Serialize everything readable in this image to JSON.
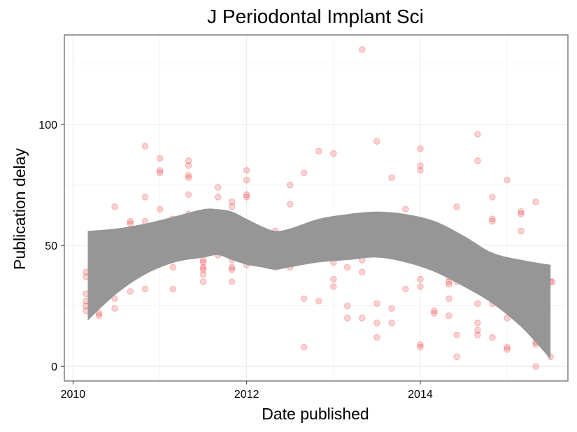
{
  "chart_data": {
    "type": "scatter",
    "title": "J Periodontal Implant Sci",
    "xlabel": "Date published",
    "ylabel": "Publication delay",
    "x_ticks": [
      "2010",
      "2012",
      "2014"
    ],
    "y_ticks": [
      "0",
      "50",
      "100"
    ],
    "xlim": [
      2009.9,
      2015.7
    ],
    "ylim": [
      -6,
      137
    ],
    "grid": true,
    "legend": "none",
    "colors": {
      "points": "#ee2222",
      "band": "#969696",
      "panel_border": "#7f7f7f",
      "grid": "#ebebeb"
    },
    "series": [
      {
        "values": [
          {
            "x": 2010.15,
            "y": 39
          },
          {
            "x": 2010.15,
            "y": 37
          },
          {
            "x": 2010.15,
            "y": 30
          },
          {
            "x": 2010.15,
            "y": 27
          },
          {
            "x": 2010.15,
            "y": 25
          },
          {
            "x": 2010.15,
            "y": 23
          },
          {
            "x": 2010.3,
            "y": 52
          },
          {
            "x": 2010.3,
            "y": 49
          },
          {
            "x": 2010.3,
            "y": 44
          },
          {
            "x": 2010.3,
            "y": 38
          },
          {
            "x": 2010.3,
            "y": 36
          },
          {
            "x": 2010.3,
            "y": 35
          },
          {
            "x": 2010.3,
            "y": 22
          },
          {
            "x": 2010.3,
            "y": 21
          },
          {
            "x": 2010.48,
            "y": 66
          },
          {
            "x": 2010.48,
            "y": 53
          },
          {
            "x": 2010.48,
            "y": 51
          },
          {
            "x": 2010.48,
            "y": 39
          },
          {
            "x": 2010.48,
            "y": 37
          },
          {
            "x": 2010.48,
            "y": 28
          },
          {
            "x": 2010.48,
            "y": 24
          },
          {
            "x": 2010.66,
            "y": 60
          },
          {
            "x": 2010.66,
            "y": 59
          },
          {
            "x": 2010.66,
            "y": 54
          },
          {
            "x": 2010.66,
            "y": 48
          },
          {
            "x": 2010.66,
            "y": 41
          },
          {
            "x": 2010.66,
            "y": 38
          },
          {
            "x": 2010.66,
            "y": 31
          },
          {
            "x": 2010.83,
            "y": 91
          },
          {
            "x": 2010.83,
            "y": 70
          },
          {
            "x": 2010.83,
            "y": 60
          },
          {
            "x": 2010.83,
            "y": 54
          },
          {
            "x": 2010.83,
            "y": 52
          },
          {
            "x": 2010.83,
            "y": 41
          },
          {
            "x": 2010.83,
            "y": 32
          },
          {
            "x": 2011.0,
            "y": 86
          },
          {
            "x": 2011.0,
            "y": 81
          },
          {
            "x": 2011.0,
            "y": 80
          },
          {
            "x": 2011.0,
            "y": 65
          },
          {
            "x": 2011.0,
            "y": 58
          },
          {
            "x": 2011.15,
            "y": 61
          },
          {
            "x": 2011.15,
            "y": 60
          },
          {
            "x": 2011.15,
            "y": 55
          },
          {
            "x": 2011.15,
            "y": 47
          },
          {
            "x": 2011.15,
            "y": 41
          },
          {
            "x": 2011.15,
            "y": 32
          },
          {
            "x": 2011.33,
            "y": 85
          },
          {
            "x": 2011.33,
            "y": 83
          },
          {
            "x": 2011.33,
            "y": 79
          },
          {
            "x": 2011.33,
            "y": 78
          },
          {
            "x": 2011.33,
            "y": 71
          },
          {
            "x": 2011.33,
            "y": 63
          },
          {
            "x": 2011.33,
            "y": 58
          },
          {
            "x": 2011.5,
            "y": 58
          },
          {
            "x": 2011.5,
            "y": 44
          },
          {
            "x": 2011.5,
            "y": 43
          },
          {
            "x": 2011.5,
            "y": 41
          },
          {
            "x": 2011.5,
            "y": 40
          },
          {
            "x": 2011.5,
            "y": 38
          },
          {
            "x": 2011.5,
            "y": 35
          },
          {
            "x": 2011.67,
            "y": 74
          },
          {
            "x": 2011.67,
            "y": 70
          },
          {
            "x": 2011.67,
            "y": 62
          },
          {
            "x": 2011.67,
            "y": 59
          },
          {
            "x": 2011.67,
            "y": 46
          },
          {
            "x": 2011.83,
            "y": 68
          },
          {
            "x": 2011.83,
            "y": 66
          },
          {
            "x": 2011.83,
            "y": 44
          },
          {
            "x": 2011.83,
            "y": 41
          },
          {
            "x": 2011.83,
            "y": 40
          },
          {
            "x": 2011.83,
            "y": 35
          },
          {
            "x": 2012.0,
            "y": 81
          },
          {
            "x": 2012.0,
            "y": 77
          },
          {
            "x": 2012.0,
            "y": 71
          },
          {
            "x": 2012.0,
            "y": 70
          },
          {
            "x": 2012.0,
            "y": 51
          },
          {
            "x": 2012.0,
            "y": 42
          },
          {
            "x": 2012.16,
            "y": 55
          },
          {
            "x": 2012.16,
            "y": 52
          },
          {
            "x": 2012.16,
            "y": 50
          },
          {
            "x": 2012.16,
            "y": 46
          },
          {
            "x": 2012.33,
            "y": 56
          },
          {
            "x": 2012.33,
            "y": 53
          },
          {
            "x": 2012.33,
            "y": 48
          },
          {
            "x": 2012.33,
            "y": 41
          },
          {
            "x": 2012.5,
            "y": 75
          },
          {
            "x": 2012.5,
            "y": 67
          },
          {
            "x": 2012.5,
            "y": 48
          },
          {
            "x": 2012.5,
            "y": 41
          },
          {
            "x": 2012.66,
            "y": 80
          },
          {
            "x": 2012.66,
            "y": 28
          },
          {
            "x": 2012.66,
            "y": 8
          },
          {
            "x": 2012.83,
            "y": 89
          },
          {
            "x": 2012.83,
            "y": 27
          },
          {
            "x": 2013.0,
            "y": 88
          },
          {
            "x": 2013.0,
            "y": 50
          },
          {
            "x": 2013.0,
            "y": 49
          },
          {
            "x": 2013.0,
            "y": 48
          },
          {
            "x": 2013.0,
            "y": 43
          },
          {
            "x": 2013.0,
            "y": 36
          },
          {
            "x": 2013.0,
            "y": 33
          },
          {
            "x": 2013.16,
            "y": 41
          },
          {
            "x": 2013.16,
            "y": 25
          },
          {
            "x": 2013.16,
            "y": 20
          },
          {
            "x": 2013.33,
            "y": 131
          },
          {
            "x": 2013.33,
            "y": 56
          },
          {
            "x": 2013.33,
            "y": 51
          },
          {
            "x": 2013.33,
            "y": 44
          },
          {
            "x": 2013.33,
            "y": 39
          },
          {
            "x": 2013.33,
            "y": 20
          },
          {
            "x": 2013.5,
            "y": 93
          },
          {
            "x": 2013.5,
            "y": 26
          },
          {
            "x": 2013.5,
            "y": 18
          },
          {
            "x": 2013.5,
            "y": 12
          },
          {
            "x": 2013.67,
            "y": 78
          },
          {
            "x": 2013.67,
            "y": 48
          },
          {
            "x": 2013.67,
            "y": 24
          },
          {
            "x": 2013.67,
            "y": 18
          },
          {
            "x": 2013.83,
            "y": 65
          },
          {
            "x": 2013.83,
            "y": 53
          },
          {
            "x": 2013.83,
            "y": 32
          },
          {
            "x": 2014.0,
            "y": 90
          },
          {
            "x": 2014.0,
            "y": 83
          },
          {
            "x": 2014.0,
            "y": 81
          },
          {
            "x": 2014.0,
            "y": 54
          },
          {
            "x": 2014.0,
            "y": 36
          },
          {
            "x": 2014.0,
            "y": 33
          },
          {
            "x": 2014.0,
            "y": 9
          },
          {
            "x": 2014.0,
            "y": 8
          },
          {
            "x": 2014.16,
            "y": 53
          },
          {
            "x": 2014.16,
            "y": 51
          },
          {
            "x": 2014.16,
            "y": 47
          },
          {
            "x": 2014.16,
            "y": 43
          },
          {
            "x": 2014.16,
            "y": 23
          },
          {
            "x": 2014.16,
            "y": 22
          },
          {
            "x": 2014.33,
            "y": 55
          },
          {
            "x": 2014.33,
            "y": 37
          },
          {
            "x": 2014.33,
            "y": 35
          },
          {
            "x": 2014.33,
            "y": 34
          },
          {
            "x": 2014.33,
            "y": 28
          },
          {
            "x": 2014.33,
            "y": 21
          },
          {
            "x": 2014.42,
            "y": 66
          },
          {
            "x": 2014.42,
            "y": 53
          },
          {
            "x": 2014.42,
            "y": 49
          },
          {
            "x": 2014.42,
            "y": 35
          },
          {
            "x": 2014.42,
            "y": 13
          },
          {
            "x": 2014.42,
            "y": 4
          },
          {
            "x": 2014.66,
            "y": 96
          },
          {
            "x": 2014.66,
            "y": 85
          },
          {
            "x": 2014.66,
            "y": 36
          },
          {
            "x": 2014.66,
            "y": 26
          },
          {
            "x": 2014.66,
            "y": 18
          },
          {
            "x": 2014.66,
            "y": 15
          },
          {
            "x": 2014.66,
            "y": 13
          },
          {
            "x": 2014.83,
            "y": 70
          },
          {
            "x": 2014.83,
            "y": 61
          },
          {
            "x": 2014.83,
            "y": 60
          },
          {
            "x": 2014.83,
            "y": 33
          },
          {
            "x": 2014.83,
            "y": 29
          },
          {
            "x": 2014.83,
            "y": 26
          },
          {
            "x": 2014.83,
            "y": 12
          },
          {
            "x": 2015.0,
            "y": 77
          },
          {
            "x": 2015.0,
            "y": 37
          },
          {
            "x": 2015.0,
            "y": 29
          },
          {
            "x": 2015.0,
            "y": 20
          },
          {
            "x": 2015.0,
            "y": 8
          },
          {
            "x": 2015.0,
            "y": 7
          },
          {
            "x": 2015.16,
            "y": 64
          },
          {
            "x": 2015.16,
            "y": 63
          },
          {
            "x": 2015.16,
            "y": 56
          },
          {
            "x": 2015.16,
            "y": 41
          },
          {
            "x": 2015.16,
            "y": 22
          },
          {
            "x": 2015.33,
            "y": 68
          },
          {
            "x": 2015.33,
            "y": 40
          },
          {
            "x": 2015.33,
            "y": 33
          },
          {
            "x": 2015.33,
            "y": 10
          },
          {
            "x": 2015.33,
            "y": 9
          },
          {
            "x": 2015.33,
            "y": 0
          },
          {
            "x": 2015.38,
            "y": 16
          },
          {
            "x": 2015.45,
            "y": 20
          },
          {
            "x": 2015.5,
            "y": 35
          },
          {
            "x": 2015.52,
            "y": 35
          },
          {
            "x": 2015.5,
            "y": 4
          }
        ]
      }
    ],
    "smooth_band": {
      "x": [
        2010.17,
        2010.5,
        2010.83,
        2011.17,
        2011.5,
        2011.67,
        2011.83,
        2012.0,
        2012.17,
        2012.33,
        2012.5,
        2012.83,
        2013.17,
        2013.5,
        2013.83,
        2014.17,
        2014.5,
        2014.83,
        2015.17,
        2015.5
      ],
      "upper": [
        56,
        57,
        59,
        62,
        65,
        65,
        64,
        61,
        58,
        56,
        57,
        61,
        63,
        64,
        63,
        60,
        54,
        47,
        44,
        42
      ],
      "lower": [
        19,
        30,
        38,
        43,
        45,
        46,
        44,
        42,
        41,
        40,
        41,
        43,
        44,
        45,
        43,
        39,
        33,
        26,
        16,
        3
      ]
    }
  }
}
